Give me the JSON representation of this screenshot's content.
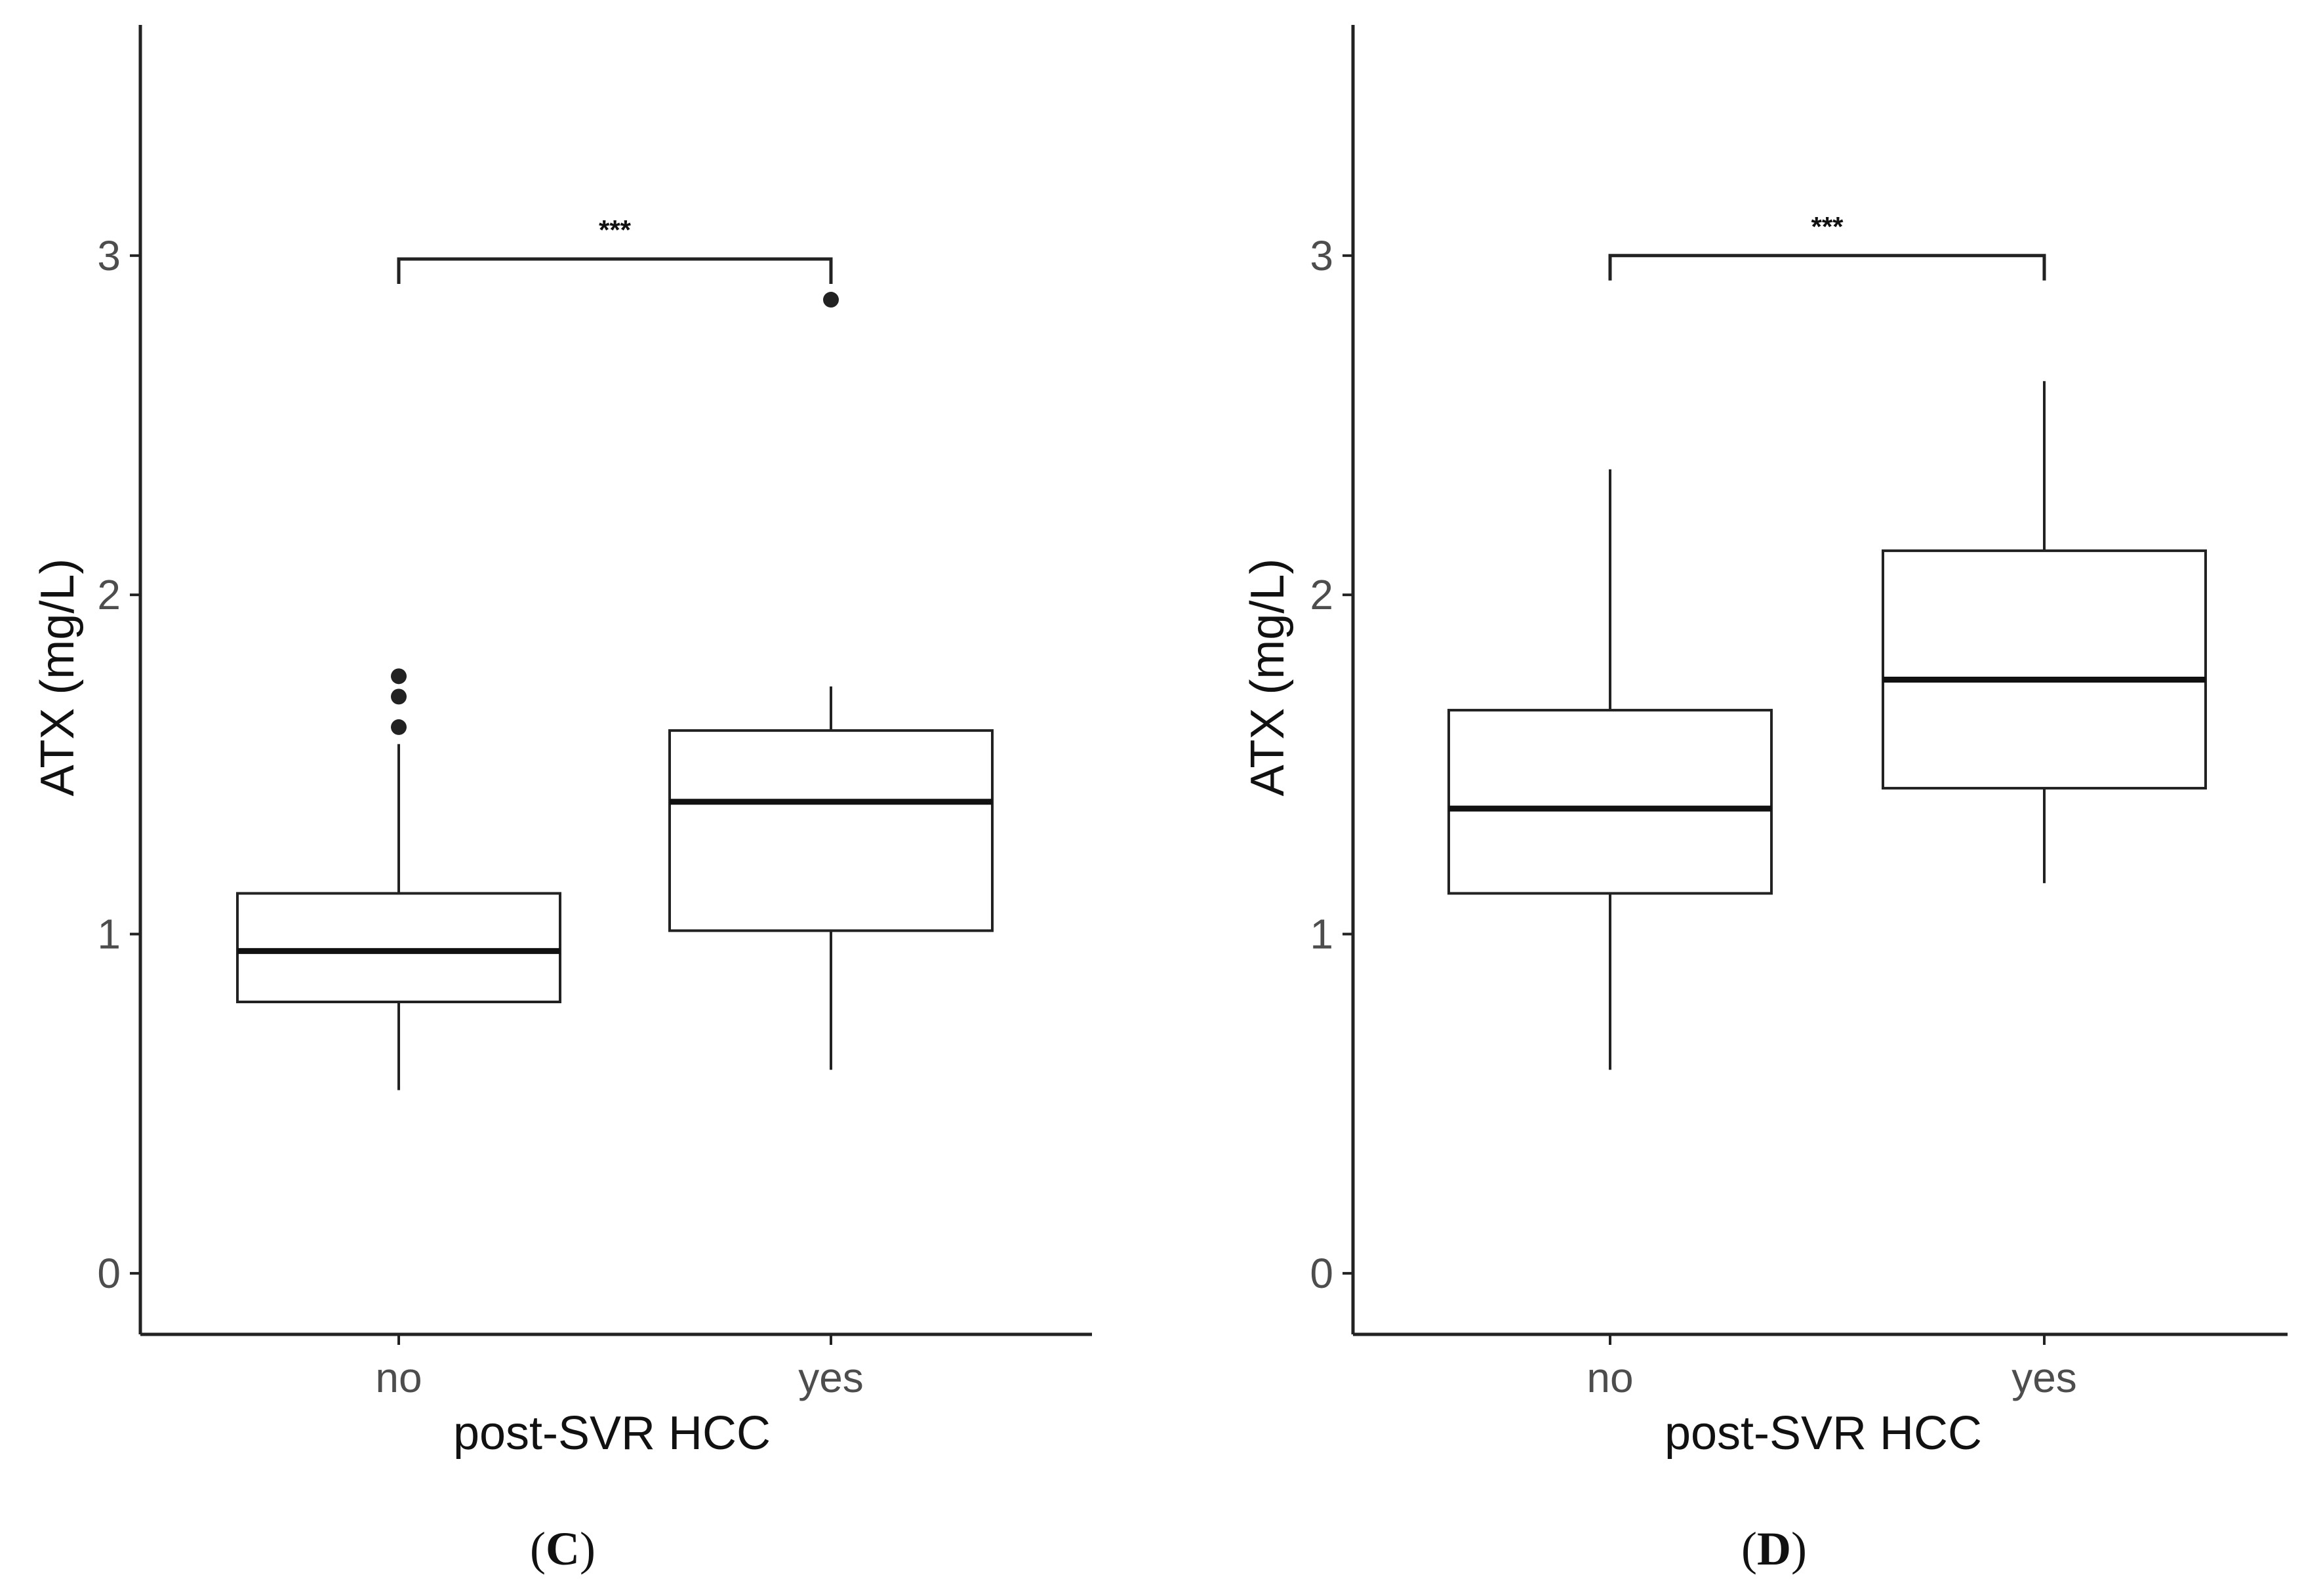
{
  "chart_data": [
    {
      "type": "boxplot",
      "panel_label": "C",
      "ylabel": "ATX (mg/L)",
      "xlabel": "post-SVR HCC",
      "ylim": [
        -0.18,
        3.68
      ],
      "yticks": [
        "0",
        "1",
        "2",
        "3"
      ],
      "categories": [
        "no",
        "yes"
      ],
      "boxes": [
        {
          "category": "no",
          "whisker_low": 0.54,
          "q1": 0.8,
          "median": 0.95,
          "q3": 1.12,
          "whisker_high": 1.56,
          "outliers": [
            1.61,
            1.7,
            1.76
          ]
        },
        {
          "category": "yes",
          "whisker_low": 0.6,
          "q1": 1.01,
          "median": 1.39,
          "q3": 1.6,
          "whisker_high": 1.73,
          "outliers": [
            2.87
          ]
        }
      ],
      "significance": {
        "from": "no",
        "to": "yes",
        "y": 2.99,
        "label": "***"
      }
    },
    {
      "type": "boxplot",
      "panel_label": "D",
      "ylabel": "ATX (mg/L)",
      "xlabel": "post-SVR HCC",
      "ylim": [
        -0.18,
        3.68
      ],
      "yticks": [
        "0",
        "1",
        "2",
        "3"
      ],
      "categories": [
        "no",
        "yes"
      ],
      "boxes": [
        {
          "category": "no",
          "whisker_low": 0.6,
          "q1": 1.12,
          "median": 1.37,
          "q3": 1.66,
          "whisker_high": 2.37,
          "outliers": []
        },
        {
          "category": "yes",
          "whisker_low": 1.15,
          "q1": 1.43,
          "median": 1.75,
          "q3": 2.13,
          "whisker_high": 2.63,
          "outliers": []
        }
      ],
      "significance": {
        "from": "no",
        "to": "yes",
        "y": 3.0,
        "label": "***"
      }
    }
  ]
}
